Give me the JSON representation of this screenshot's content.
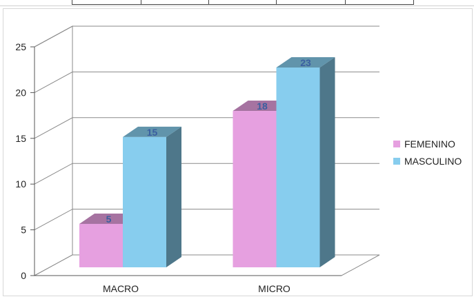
{
  "chart_data": {
    "type": "bar",
    "categories": [
      "MACRO",
      "MICRO"
    ],
    "series": [
      {
        "name": "FEMENINO",
        "values": [
          5,
          18
        ],
        "color": "#e6a0e0"
      },
      {
        "name": "MASCULINO",
        "values": [
          15,
          23
        ],
        "color": "#87cdee"
      }
    ],
    "ylim": [
      0,
      25
    ],
    "yticks": [
      0,
      5,
      10,
      15,
      20,
      25
    ],
    "grid": true,
    "legend": "right",
    "style": "3d-column",
    "label_color": "#3a5fa0"
  }
}
